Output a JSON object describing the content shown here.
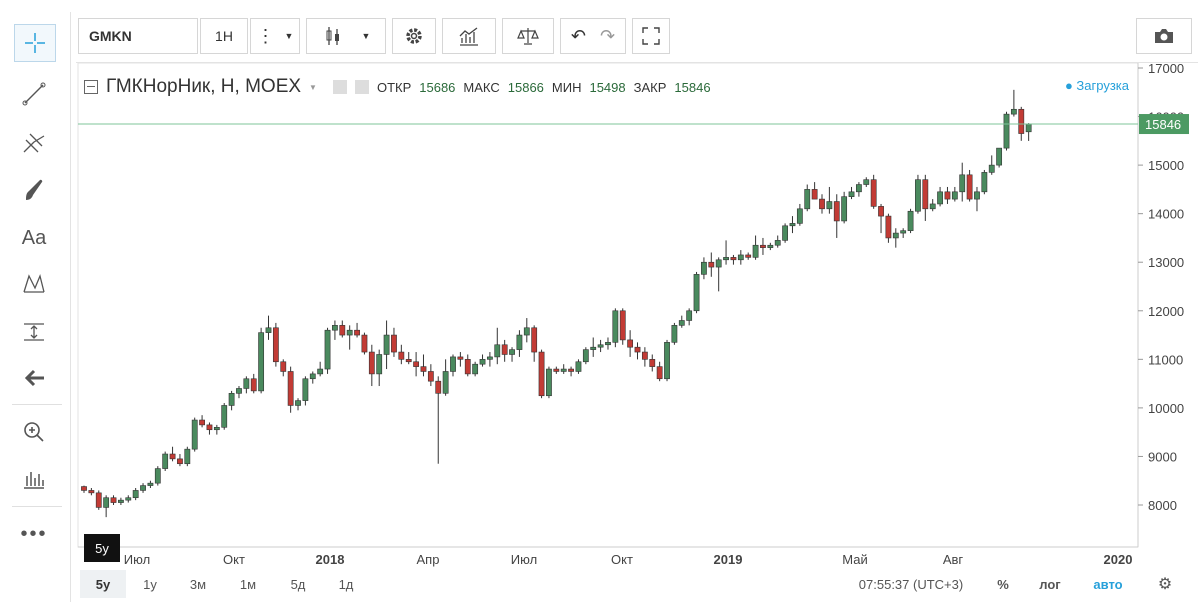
{
  "toolbar": {
    "symbol": "GMKN",
    "interval": "1H"
  },
  "legend": {
    "title": "ГМКНорНик, Н, MOEX",
    "open_label": "ОТКР",
    "open": "15686",
    "high_label": "МАКС",
    "high": "15866",
    "low_label": "МИН",
    "low": "15498",
    "close_label": "ЗАКР",
    "close": "15846",
    "loading": "Загрузка"
  },
  "price_axis": {
    "ticks": [
      "17000",
      "16000",
      "15000",
      "14000",
      "13000",
      "12000",
      "11000",
      "10000",
      "9000",
      "8000"
    ],
    "current_label": "15846"
  },
  "time_axis": {
    "labels": [
      {
        "text": "Июл",
        "bold": false
      },
      {
        "text": "Окт",
        "bold": false
      },
      {
        "text": "2018",
        "bold": true
      },
      {
        "text": "Апр",
        "bold": false
      },
      {
        "text": "Июл",
        "bold": false
      },
      {
        "text": "Окт",
        "bold": false
      },
      {
        "text": "2019",
        "bold": true
      },
      {
        "text": "Май",
        "bold": false
      },
      {
        "text": "Авг",
        "bold": false
      },
      {
        "text": "2020",
        "bold": true
      }
    ]
  },
  "ranges": [
    "5у",
    "1у",
    "3м",
    "1м",
    "5д",
    "1д"
  ],
  "tooltip": "5у",
  "status": {
    "time": "07:55:37 (UTC+3)",
    "percent": "%",
    "log": "лог",
    "auto": "авто"
  },
  "colors": {
    "up": "#4a8a5e",
    "down": "#c23b35",
    "accent": "#26a0da",
    "price_label_bg": "#4c9a63"
  },
  "chart_data": {
    "type": "candlestick",
    "ylim": [
      7100,
      17000
    ],
    "candles": [
      [
        8380,
        8250,
        8400,
        8300
      ],
      [
        8300,
        8200,
        8350,
        8250
      ],
      [
        8250,
        7900,
        8300,
        7950
      ],
      [
        7950,
        7750,
        8200,
        8150
      ],
      [
        8150,
        8000,
        8200,
        8050
      ],
      [
        8050,
        8000,
        8150,
        8100
      ],
      [
        8100,
        8050,
        8200,
        8150
      ],
      [
        8150,
        8100,
        8350,
        8300
      ],
      [
        8300,
        8250,
        8450,
        8400
      ],
      [
        8400,
        8350,
        8500,
        8450
      ],
      [
        8450,
        8400,
        8800,
        8750
      ],
      [
        8750,
        8700,
        9100,
        9050
      ],
      [
        9050,
        8900,
        9200,
        8950
      ],
      [
        8950,
        8800,
        9050,
        8850
      ],
      [
        8850,
        8800,
        9200,
        9150
      ],
      [
        9150,
        9100,
        9800,
        9750
      ],
      [
        9750,
        9600,
        9850,
        9650
      ],
      [
        9650,
        9450,
        9700,
        9550
      ],
      [
        9550,
        9450,
        9650,
        9600
      ],
      [
        9600,
        9550,
        10100,
        10050
      ],
      [
        10050,
        9950,
        10350,
        10300
      ],
      [
        10300,
        10200,
        10450,
        10400
      ],
      [
        10400,
        10300,
        10650,
        10600
      ],
      [
        10600,
        10300,
        10700,
        10350
      ],
      [
        10350,
        10300,
        11650,
        11550
      ],
      [
        11550,
        11400,
        11900,
        11650
      ],
      [
        11650,
        10850,
        11750,
        10950
      ],
      [
        10950,
        10650,
        11000,
        10750
      ],
      [
        10750,
        9900,
        10850,
        10050
      ],
      [
        10050,
        9950,
        10200,
        10150
      ],
      [
        10150,
        10050,
        10650,
        10600
      ],
      [
        10600,
        10500,
        10750,
        10700
      ],
      [
        10700,
        10650,
        10950,
        10800
      ],
      [
        10800,
        10700,
        11650,
        11600
      ],
      [
        11600,
        11400,
        11800,
        11700
      ],
      [
        11700,
        11450,
        11800,
        11500
      ],
      [
        11500,
        11200,
        11700,
        11600
      ],
      [
        11600,
        11450,
        11750,
        11500
      ],
      [
        11500,
        11100,
        11550,
        11150
      ],
      [
        11150,
        10450,
        11300,
        10700
      ],
      [
        10700,
        10450,
        11200,
        11100
      ],
      [
        11100,
        10800,
        11800,
        11500
      ],
      [
        11500,
        11050,
        11650,
        11150
      ],
      [
        11150,
        10900,
        11300,
        11000
      ],
      [
        11000,
        10900,
        11150,
        10950
      ],
      [
        10950,
        10650,
        11150,
        10850
      ],
      [
        10850,
        10650,
        11100,
        10750
      ],
      [
        10750,
        10450,
        10900,
        10550
      ],
      [
        10550,
        8850,
        10650,
        10300
      ],
      [
        10300,
        10250,
        11000,
        10750
      ],
      [
        10750,
        10650,
        11100,
        11050
      ],
      [
        11050,
        10850,
        11150,
        11000
      ],
      [
        11000,
        10650,
        11100,
        10700
      ],
      [
        10700,
        10650,
        10950,
        10900
      ],
      [
        10900,
        10850,
        11100,
        11000
      ],
      [
        11000,
        10850,
        11150,
        11050
      ],
      [
        11050,
        10900,
        11650,
        11300
      ],
      [
        11300,
        10950,
        11400,
        11100
      ],
      [
        11100,
        10950,
        11250,
        11200
      ],
      [
        11200,
        11050,
        11600,
        11500
      ],
      [
        11500,
        11350,
        11850,
        11650
      ],
      [
        11650,
        10950,
        11700,
        11150
      ],
      [
        11150,
        10200,
        11200,
        10250
      ],
      [
        10250,
        10200,
        10850,
        10800
      ],
      [
        10800,
        10700,
        10850,
        10750
      ],
      [
        10750,
        10700,
        10900,
        10800
      ],
      [
        10800,
        10650,
        10850,
        10750
      ],
      [
        10750,
        10700,
        11000,
        10950
      ],
      [
        10950,
        10900,
        11250,
        11200
      ],
      [
        11200,
        11050,
        11450,
        11250
      ],
      [
        11250,
        11150,
        11400,
        11300
      ],
      [
        11300,
        11200,
        11450,
        11350
      ],
      [
        11350,
        11250,
        12050,
        12000
      ],
      [
        12000,
        11300,
        12050,
        11400
      ],
      [
        11400,
        11050,
        11600,
        11250
      ],
      [
        11250,
        11000,
        11350,
        11150
      ],
      [
        11150,
        10850,
        11250,
        11000
      ],
      [
        11000,
        10750,
        11100,
        10850
      ],
      [
        10850,
        10550,
        10950,
        10600
      ],
      [
        10600,
        10550,
        11400,
        11350
      ],
      [
        11350,
        11300,
        11750,
        11700
      ],
      [
        11700,
        11650,
        11900,
        11800
      ],
      [
        11800,
        11700,
        12050,
        12000
      ],
      [
        12000,
        11950,
        12800,
        12750
      ],
      [
        12750,
        12650,
        13100,
        13000
      ],
      [
        13000,
        12700,
        13200,
        12900
      ],
      [
        12900,
        12400,
        13100,
        13050
      ],
      [
        13050,
        12950,
        13450,
        13100
      ],
      [
        13100,
        12950,
        13150,
        13050
      ],
      [
        13050,
        12950,
        13250,
        13150
      ],
      [
        13150,
        13050,
        13200,
        13100
      ],
      [
        13100,
        13050,
        13550,
        13350
      ],
      [
        13350,
        13150,
        13500,
        13300
      ],
      [
        13300,
        13250,
        13400,
        13350
      ],
      [
        13350,
        13300,
        13550,
        13450
      ],
      [
        13450,
        13400,
        13800,
        13750
      ],
      [
        13750,
        13600,
        13950,
        13800
      ],
      [
        13800,
        13750,
        14200,
        14100
      ],
      [
        14100,
        14050,
        14600,
        14500
      ],
      [
        14500,
        14400,
        14650,
        14300
      ],
      [
        14300,
        14000,
        14400,
        14100
      ],
      [
        14100,
        14000,
        14550,
        14250
      ],
      [
        14250,
        13500,
        14400,
        13850
      ],
      [
        13850,
        13800,
        14450,
        14350
      ],
      [
        14350,
        14300,
        14550,
        14450
      ],
      [
        14450,
        14350,
        14650,
        14600
      ],
      [
        14600,
        14550,
        14750,
        14700
      ],
      [
        14700,
        14100,
        14800,
        14150
      ],
      [
        14150,
        13600,
        14200,
        13950
      ],
      [
        13950,
        13400,
        14000,
        13500
      ],
      [
        13500,
        13300,
        13700,
        13600
      ],
      [
        13600,
        13500,
        13700,
        13650
      ],
      [
        13650,
        13600,
        14100,
        14050
      ],
      [
        14050,
        14000,
        14800,
        14700
      ],
      [
        14700,
        13850,
        14800,
        14100
      ],
      [
        14100,
        14050,
        14300,
        14200
      ],
      [
        14200,
        14150,
        14550,
        14450
      ],
      [
        14450,
        14200,
        14550,
        14300
      ],
      [
        14300,
        14250,
        14550,
        14450
      ],
      [
        14450,
        14250,
        15050,
        14800
      ],
      [
        14800,
        14250,
        14900,
        14300
      ],
      [
        14300,
        14050,
        14550,
        14450
      ],
      [
        14450,
        14400,
        14900,
        14850
      ],
      [
        14850,
        14800,
        15200,
        15000
      ],
      [
        15000,
        14950,
        15300,
        15350
      ],
      [
        15350,
        15300,
        16100,
        16050
      ],
      [
        16050,
        16000,
        16550,
        16150
      ],
      [
        16150,
        15500,
        16200,
        15650
      ],
      [
        15686,
        15498,
        15866,
        15846
      ]
    ]
  }
}
